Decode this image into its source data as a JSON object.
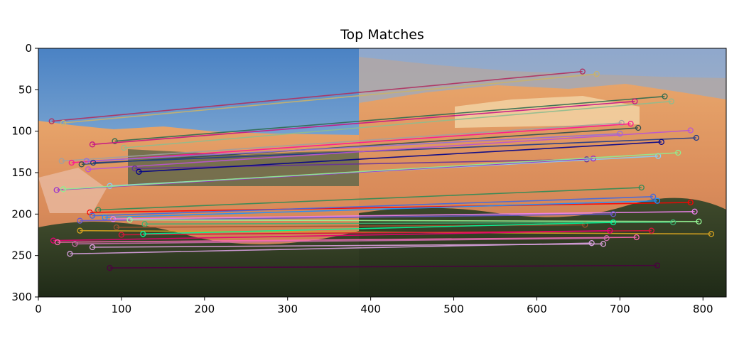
{
  "chart_data": {
    "type": "scatter",
    "title": "Top Matches",
    "xlabel": "",
    "ylabel": "",
    "xlim": [
      0,
      828
    ],
    "ylim": [
      300,
      0
    ],
    "y_axis_inverted": true,
    "grid": false,
    "legend": "none",
    "image_split_x": 385,
    "x_ticks": [
      0,
      100,
      200,
      300,
      400,
      500,
      600,
      700,
      800
    ],
    "y_ticks": [
      0,
      50,
      100,
      150,
      200,
      250,
      300
    ],
    "background": "two side-by-side landscape photos of canyon hoodoos under blue sky with forest in the foreground",
    "matches": [
      {
        "x1": 16,
        "y1": 88,
        "x2": 655,
        "y2": 28,
        "color": "#b03060"
      },
      {
        "x1": 30,
        "y1": 90,
        "x2": 672,
        "y2": 31,
        "color": "#c9b26b"
      },
      {
        "x1": 92,
        "y1": 112,
        "x2": 754,
        "y2": 58,
        "color": "#2e6b4f"
      },
      {
        "x1": 103,
        "y1": 120,
        "x2": 762,
        "y2": 64,
        "color": "#8fbc8f"
      },
      {
        "x1": 65,
        "y1": 116,
        "x2": 718,
        "y2": 64,
        "color": "#c71585"
      },
      {
        "x1": 28,
        "y1": 136,
        "x2": 702,
        "y2": 90,
        "color": "#a0a0a0"
      },
      {
        "x1": 40,
        "y1": 138,
        "x2": 713,
        "y2": 91,
        "color": "#ff1493"
      },
      {
        "x1": 52,
        "y1": 140,
        "x2": 722,
        "y2": 96,
        "color": "#2f4f4f"
      },
      {
        "x1": 58,
        "y1": 136,
        "x2": 700,
        "y2": 103,
        "color": "#9370db"
      },
      {
        "x1": 66,
        "y1": 138,
        "x2": 792,
        "y2": 108,
        "color": "#1e3a8a"
      },
      {
        "x1": 60,
        "y1": 146,
        "x2": 785,
        "y2": 99,
        "color": "#ba55d3"
      },
      {
        "x1": 116,
        "y1": 145,
        "x2": 660,
        "y2": 134,
        "color": "#663399"
      },
      {
        "x1": 121,
        "y1": 149,
        "x2": 750,
        "y2": 113,
        "color": "#00008b"
      },
      {
        "x1": 86,
        "y1": 166,
        "x2": 746,
        "y2": 130,
        "color": "#87cefa"
      },
      {
        "x1": 22,
        "y1": 171,
        "x2": 668,
        "y2": 133,
        "color": "#9932cc"
      },
      {
        "x1": 30,
        "y1": 170,
        "x2": 770,
        "y2": 126,
        "color": "#90ee90"
      },
      {
        "x1": 72,
        "y1": 195,
        "x2": 726,
        "y2": 168,
        "color": "#2e8b57"
      },
      {
        "x1": 62,
        "y1": 198,
        "x2": 785,
        "y2": 186,
        "color": "#ff0000"
      },
      {
        "x1": 65,
        "y1": 202,
        "x2": 740,
        "y2": 179,
        "color": "#4169e1"
      },
      {
        "x1": 80,
        "y1": 204,
        "x2": 745,
        "y2": 184,
        "color": "#1e90ff"
      },
      {
        "x1": 90,
        "y1": 206,
        "x2": 790,
        "y2": 197,
        "color": "#ee82ee"
      },
      {
        "x1": 50,
        "y1": 208,
        "x2": 692,
        "y2": 200,
        "color": "#6a5acd"
      },
      {
        "x1": 110,
        "y1": 207,
        "x2": 795,
        "y2": 209,
        "color": "#98fb98"
      },
      {
        "x1": 128,
        "y1": 212,
        "x2": 764,
        "y2": 210,
        "color": "#3cb371"
      },
      {
        "x1": 94,
        "y1": 216,
        "x2": 658,
        "y2": 213,
        "color": "#a0522d"
      },
      {
        "x1": 50,
        "y1": 220,
        "x2": 810,
        "y2": 224,
        "color": "#daa520"
      },
      {
        "x1": 100,
        "y1": 225,
        "x2": 738,
        "y2": 220,
        "color": "#dc143c"
      },
      {
        "x1": 126,
        "y1": 224,
        "x2": 692,
        "y2": 210,
        "color": "#00fa9a"
      },
      {
        "x1": 18,
        "y1": 232,
        "x2": 688,
        "y2": 220,
        "color": "#e60073"
      },
      {
        "x1": 23,
        "y1": 234,
        "x2": 720,
        "y2": 228,
        "color": "#ff69b4"
      },
      {
        "x1": 44,
        "y1": 236,
        "x2": 684,
        "y2": 229,
        "color": "#c76ba8"
      },
      {
        "x1": 65,
        "y1": 240,
        "x2": 680,
        "y2": 236,
        "color": "#dda0dd"
      },
      {
        "x1": 38,
        "y1": 248,
        "x2": 666,
        "y2": 235,
        "color": "#d8a0e0"
      },
      {
        "x1": 86,
        "y1": 265,
        "x2": 745,
        "y2": 262,
        "color": "#4b0040"
      }
    ]
  }
}
